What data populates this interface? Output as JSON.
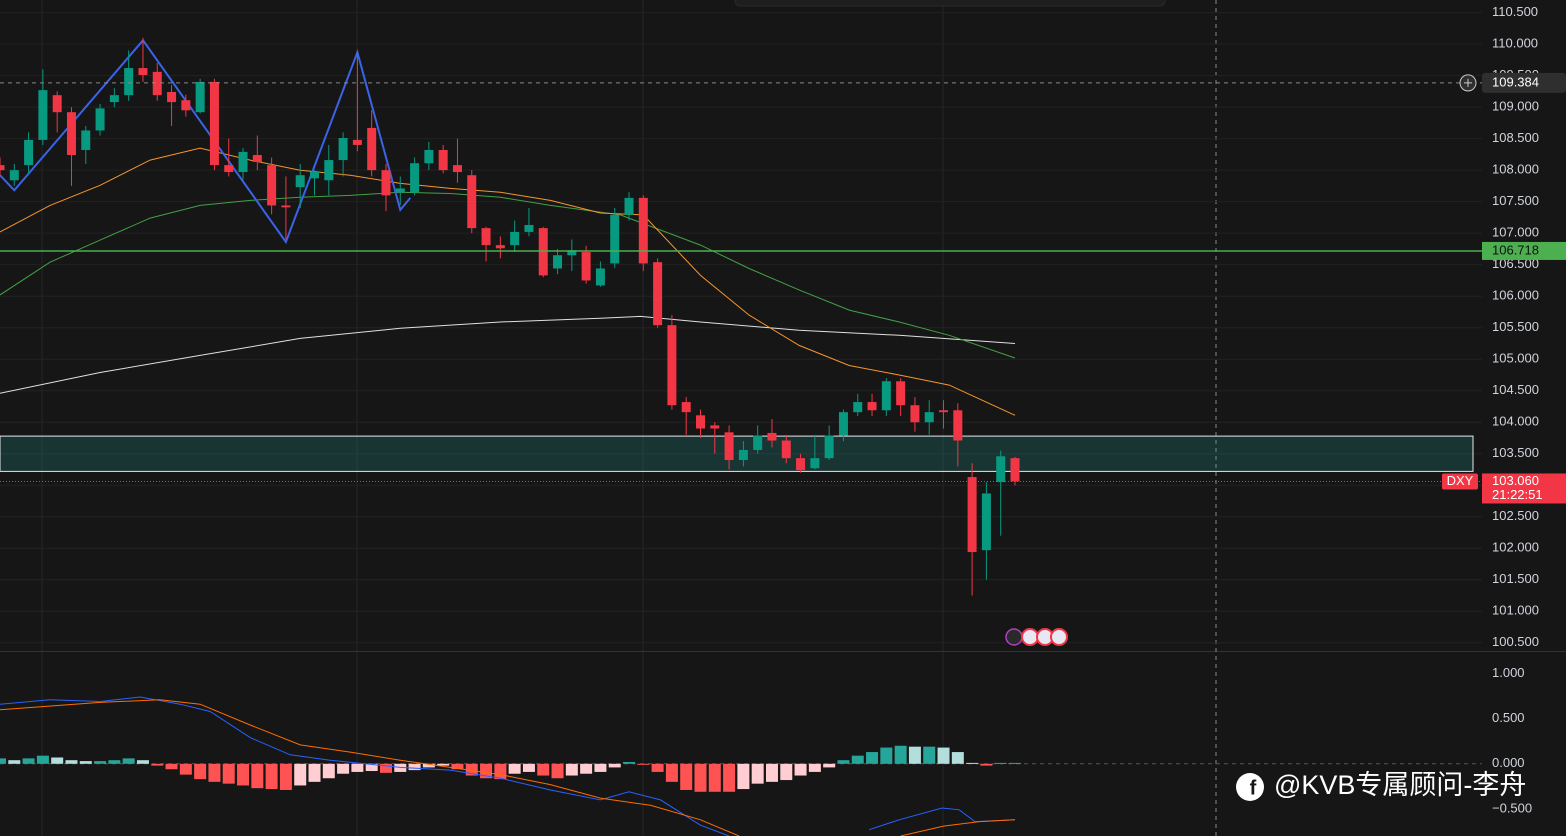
{
  "chart_data": [
    {
      "type": "candlestick",
      "symbol": "DXY",
      "up_color": "#089981",
      "down_color": "#f23645",
      "candles": {
        "open": [
          108.08,
          107.84,
          108.08,
          108.48,
          109.19,
          108.92,
          108.32,
          108.63,
          109.08,
          109.19,
          109.62,
          109.56,
          109.24,
          109.11,
          108.92,
          109.4,
          108.08,
          107.97,
          108.24,
          108.08,
          107.44,
          107.73,
          107.87,
          107.84,
          108.16,
          108.48,
          108.67,
          108.0,
          107.65,
          107.65,
          108.11,
          108.32,
          108.08,
          107.92,
          107.08,
          106.81,
          106.81,
          107.02,
          107.08,
          106.44,
          106.65,
          106.7,
          106.17,
          106.52,
          107.29,
          107.56,
          106.54,
          105.54,
          104.32,
          104.11,
          103.95,
          103.84,
          103.4,
          103.56,
          103.83,
          103.71,
          103.43,
          103.27,
          103.43,
          103.79,
          104.16,
          104.32,
          104.19,
          104.65,
          104.27,
          104.0,
          104.19,
          104.19,
          103.13,
          101.97,
          103.05,
          103.43
        ],
        "high": [
          108.2,
          108.1,
          108.6,
          109.6,
          109.25,
          109.0,
          108.7,
          109.05,
          109.3,
          109.9,
          110.1,
          109.7,
          109.35,
          109.2,
          109.45,
          109.45,
          108.5,
          108.35,
          108.55,
          108.2,
          107.9,
          108.1,
          108.0,
          108.4,
          108.6,
          109.87,
          108.95,
          108.1,
          107.9,
          108.2,
          108.45,
          108.4,
          108.5,
          108.0,
          107.1,
          106.95,
          107.2,
          107.4,
          107.1,
          106.75,
          106.9,
          106.8,
          106.55,
          107.4,
          107.65,
          107.6,
          106.6,
          105.7,
          104.4,
          104.2,
          104.0,
          103.95,
          103.7,
          103.95,
          104.05,
          103.8,
          103.5,
          103.8,
          103.95,
          104.2,
          104.45,
          104.45,
          104.7,
          104.7,
          104.4,
          104.35,
          104.35,
          104.3,
          103.35,
          103.05,
          103.55,
          103.45
        ],
        "low": [
          107.9,
          107.75,
          107.95,
          108.4,
          108.6,
          107.75,
          108.1,
          108.55,
          109.0,
          109.1,
          109.4,
          109.1,
          108.7,
          108.85,
          108.9,
          108.0,
          107.9,
          107.85,
          108.0,
          107.3,
          106.9,
          107.4,
          107.6,
          107.6,
          107.9,
          108.3,
          107.9,
          107.35,
          107.45,
          107.6,
          108.0,
          107.95,
          107.8,
          107.0,
          106.55,
          106.6,
          106.7,
          106.95,
          106.3,
          106.35,
          106.4,
          106.2,
          106.15,
          106.45,
          107.2,
          106.4,
          105.5,
          104.2,
          103.8,
          103.75,
          103.5,
          103.25,
          103.3,
          103.5,
          103.6,
          103.35,
          103.2,
          103.25,
          103.4,
          103.7,
          104.1,
          104.1,
          104.1,
          104.1,
          103.85,
          103.8,
          103.9,
          103.3,
          101.25,
          101.5,
          102.2,
          103.0
        ],
        "close": [
          108.0,
          108.0,
          108.48,
          109.27,
          108.92,
          108.24,
          108.63,
          108.98,
          109.19,
          109.62,
          109.51,
          109.19,
          109.08,
          108.95,
          109.4,
          108.08,
          107.97,
          108.29,
          108.13,
          107.44,
          107.41,
          107.92,
          107.97,
          108.16,
          108.51,
          108.4,
          108.0,
          107.6,
          107.71,
          108.11,
          108.32,
          108.0,
          107.97,
          107.08,
          106.81,
          106.76,
          107.02,
          107.13,
          106.33,
          106.65,
          106.73,
          106.25,
          106.44,
          107.29,
          107.56,
          106.52,
          105.54,
          104.27,
          104.16,
          103.9,
          103.9,
          103.4,
          103.56,
          103.79,
          103.71,
          103.43,
          103.24,
          103.43,
          103.79,
          104.16,
          104.32,
          104.19,
          104.65,
          104.27,
          104.0,
          104.16,
          104.16,
          103.71,
          101.94,
          102.87,
          103.46,
          103.06
        ]
      },
      "overlays": [
        {
          "color": "#e0e0e0",
          "x": [
            0,
            7,
            14,
            21,
            28,
            35,
            42,
            44.8,
            49,
            55.9,
            62.9,
            71
          ],
          "values": [
            104.46,
            104.79,
            105.06,
            105.33,
            105.49,
            105.59,
            105.65,
            105.68,
            105.59,
            105.46,
            105.38,
            105.25
          ]
        },
        {
          "color": "#43a047",
          "x": [
            0,
            3.5,
            7,
            10.5,
            14,
            17.5,
            21,
            24.5,
            28,
            31.5,
            35,
            38.5,
            43.4,
            49,
            52.4,
            55.9,
            59.4,
            62.9,
            66.4,
            71
          ],
          "values": [
            106.02,
            106.54,
            106.89,
            107.24,
            107.44,
            107.52,
            107.57,
            107.6,
            107.65,
            107.63,
            107.57,
            107.44,
            107.29,
            106.81,
            106.44,
            106.1,
            105.78,
            105.59,
            105.38,
            105.02
          ]
        },
        {
          "color": "#f5962d",
          "x": [
            0,
            3.5,
            7,
            10.5,
            14,
            17.5,
            21,
            24.5,
            28,
            31.5,
            35,
            38.5,
            42,
            45,
            49,
            52.4,
            55.9,
            59.4,
            62.9,
            66.4,
            71
          ],
          "values": [
            107.02,
            107.44,
            107.76,
            108.16,
            108.35,
            108.16,
            108.0,
            107.92,
            107.79,
            107.71,
            107.65,
            107.52,
            107.32,
            107.29,
            106.33,
            105.7,
            105.22,
            104.9,
            104.75,
            104.59,
            104.11
          ]
        },
        {
          "color": "#3a63e8",
          "width": 2,
          "x": [
            0,
            1,
            10,
            20,
            25,
            28,
            28.7
          ],
          "values": [
            107.92,
            107.68,
            110.06,
            106.86,
            109.87,
            107.37,
            107.56
          ]
        }
      ],
      "zone": [
        103.22,
        103.78
      ],
      "support": 106.718,
      "support_color": "#4caf50",
      "crosshair": 109.384,
      "last_price": {
        "value": 103.06,
        "label": "103.060"
      },
      "countdown": "21:22:51",
      "ylim": [
        100.37,
        110.7
      ],
      "yticks": [
        {
          "value": 100.5,
          "label": "100.500"
        },
        {
          "value": 101,
          "label": "101.000"
        },
        {
          "value": 101.5,
          "label": "101.500"
        },
        {
          "value": 102,
          "label": "102.000"
        },
        {
          "value": 102.5,
          "label": "102.500"
        },
        {
          "value": 103,
          "label": "103.000"
        },
        {
          "value": 103.5,
          "label": "103.500"
        },
        {
          "value": 104,
          "label": "104.000"
        },
        {
          "value": 104.5,
          "label": "104.500"
        },
        {
          "value": 105,
          "label": "105.000"
        },
        {
          "value": 105.5,
          "label": "105.500"
        },
        {
          "value": 106,
          "label": "106.000"
        },
        {
          "value": 106.5,
          "label": "106.500"
        },
        {
          "value": 107,
          "label": "107.000"
        },
        {
          "value": 107.5,
          "label": "107.500"
        },
        {
          "value": 108,
          "label": "108.000"
        },
        {
          "value": 108.5,
          "label": "108.500"
        },
        {
          "value": 109,
          "label": "109.000"
        },
        {
          "value": 109.5,
          "label": "109.500"
        },
        {
          "value": 110,
          "label": "110.000"
        },
        {
          "value": 110.5,
          "label": "110.500"
        }
      ],
      "grid": true
    },
    {
      "type": "macd",
      "histogram": [
        0.06,
        0.04,
        0.06,
        0.09,
        0.07,
        0.04,
        0.03,
        0.03,
        0.04,
        0.06,
        0.04,
        -0.02,
        -0.06,
        -0.12,
        -0.17,
        -0.2,
        -0.22,
        -0.24,
        -0.27,
        -0.28,
        -0.29,
        -0.24,
        -0.2,
        -0.16,
        -0.11,
        -0.09,
        -0.08,
        -0.1,
        -0.09,
        -0.07,
        -0.04,
        -0.02,
        -0.06,
        -0.13,
        -0.16,
        -0.17,
        -0.11,
        -0.09,
        -0.13,
        -0.16,
        -0.13,
        -0.11,
        -0.09,
        -0.04,
        0.02,
        -0.01,
        -0.09,
        -0.2,
        -0.29,
        -0.31,
        -0.31,
        -0.31,
        -0.28,
        -0.22,
        -0.2,
        -0.18,
        -0.13,
        -0.09,
        -0.04,
        0.04,
        0.09,
        0.13,
        0.18,
        0.2,
        0.19,
        0.19,
        0.18,
        0.13,
        0.01,
        -0.02,
        0.01,
        0.01
      ],
      "hist_colors": {
        "up_rising": "#26a69a",
        "up_falling": "#b2dfdb",
        "down_falling": "#ff5252",
        "down_rising": "#ffcdd2"
      },
      "series": [
        {
          "color": "#2962ff",
          "x": [
            0,
            3.5,
            7,
            9.8,
            12.6,
            14.7,
            17.5,
            20.3,
            23.1,
            28,
            31.5,
            35,
            38.5,
            42,
            44,
            46.2,
            49,
            51,
            56,
            60.8,
            62.9,
            65.9,
            67.1,
            68.2,
            71
          ],
          "values": [
            0.66,
            0.71,
            0.69,
            0.74,
            0.66,
            0.58,
            0.29,
            0.1,
            0.04,
            -0.04,
            -0.07,
            -0.16,
            -0.29,
            -0.4,
            -0.31,
            -0.4,
            -0.68,
            -0.8,
            null,
            -0.73,
            -0.62,
            -0.49,
            -0.51,
            -0.64,
            -0.62
          ]
        },
        {
          "color": "#ff6d00",
          "x": [
            0,
            7,
            11.2,
            14,
            17.5,
            21,
            24.5,
            28,
            31.5,
            35,
            38.5,
            42,
            45.5,
            49,
            51.7,
            56,
            63,
            66,
            68.5,
            71
          ],
          "values": [
            0.6,
            0.68,
            0.71,
            0.66,
            0.43,
            0.21,
            0.13,
            0.04,
            -0.04,
            -0.12,
            -0.23,
            -0.38,
            -0.46,
            -0.62,
            -0.8,
            null,
            -0.8,
            -0.69,
            -0.64,
            -0.62
          ]
        }
      ],
      "ylim": [
        -0.8,
        1.25
      ],
      "yticks": [
        {
          "value": -0.5,
          "label": "−0.500"
        },
        {
          "value": 0,
          "label": "0.000"
        },
        {
          "value": 0.5,
          "label": "0.500"
        },
        {
          "value": 1,
          "label": "1.000"
        }
      ]
    },
    {
      "type": "watermark",
      "text": "@KVB专属顾问-李舟"
    }
  ]
}
